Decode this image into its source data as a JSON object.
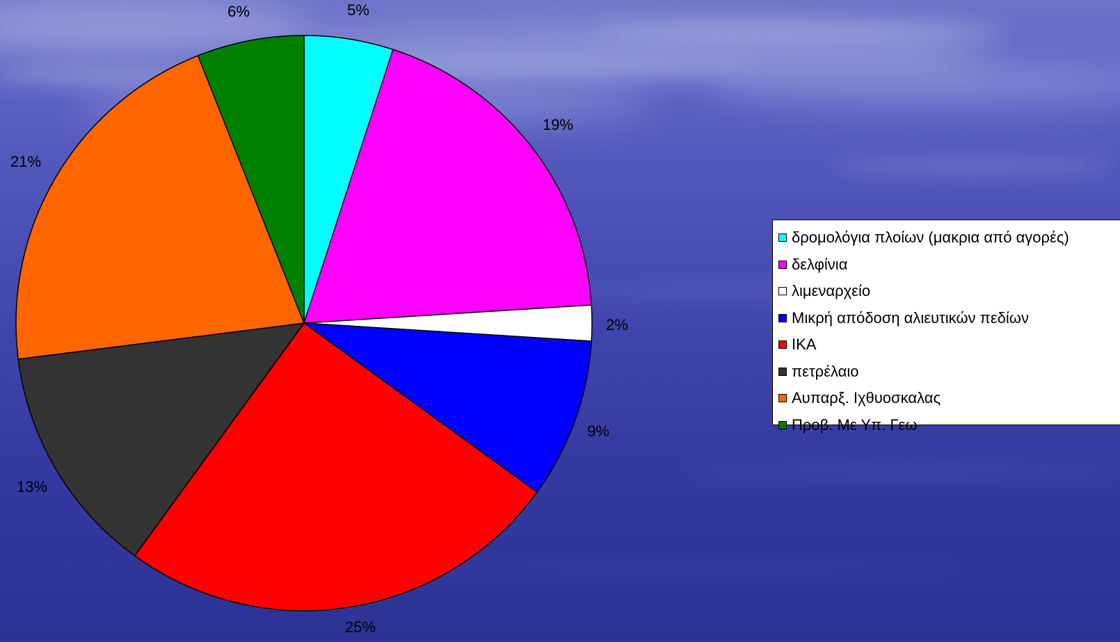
{
  "chart_data": {
    "type": "pie",
    "title": "",
    "start_angle": "12 o'clock",
    "direction": "clockwise",
    "slices": [
      {
        "label": "δρομολόγια πλοίων (μακρια από αγορές)",
        "value": 5,
        "value_label": "5%",
        "color": "#00ffff"
      },
      {
        "label": "δελφίνια",
        "value": 19,
        "value_label": "19%",
        "color": "#ff00ff"
      },
      {
        "label": "λιμεναρχείο",
        "value": 2,
        "value_label": "2%",
        "color": "#ffffff"
      },
      {
        "label": "Μικρή απόδοση αλιευτικών πεδίων",
        "value": 9,
        "value_label": "9%",
        "color": "#0000ff"
      },
      {
        "label": "ΙΚΑ",
        "value": 25,
        "value_label": "25%",
        "color": "#ff0000"
      },
      {
        "label": "πετρέλαιο",
        "value": 13,
        "value_label": "13%",
        "color": "#333333"
      },
      {
        "label": "Αυπαρξ. Ιχθυοσκαλας",
        "value": 21,
        "value_label": "21%",
        "color": "#ff6600"
      },
      {
        "label": "Προβ. Με Υπ. Γεω",
        "value": 6,
        "value_label": "6%",
        "color": "#008000"
      }
    ],
    "legend_position": "right"
  }
}
